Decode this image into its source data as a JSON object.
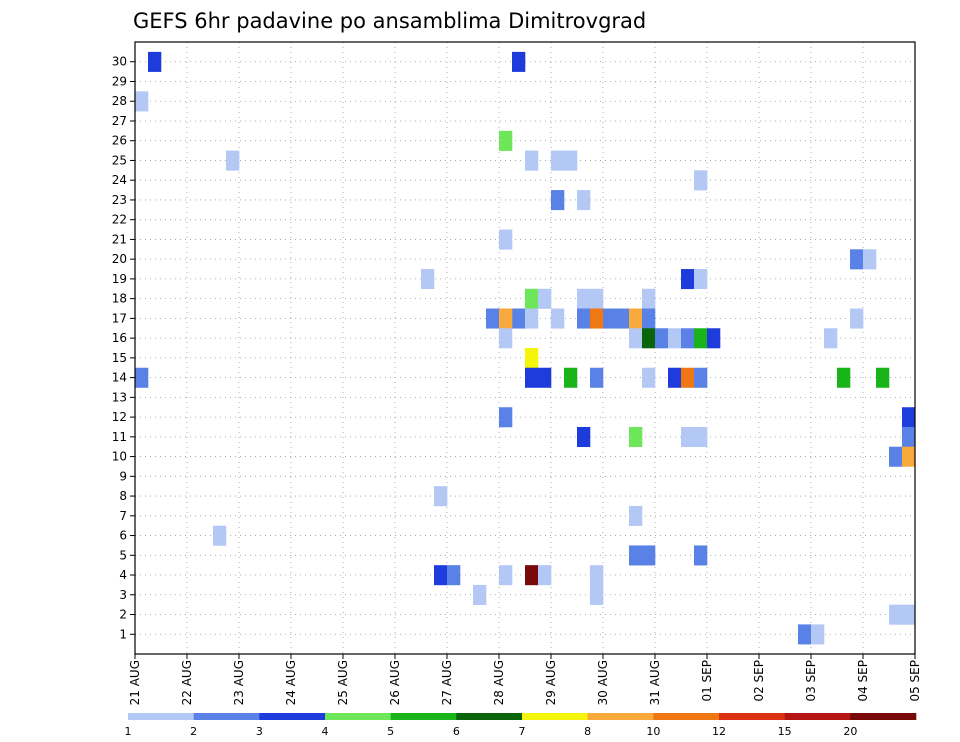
{
  "chart_data": {
    "type": "heatmap",
    "title": "GEFS 6hr padavine po ansamblima Dimitrovgrad",
    "xlabel": "",
    "ylabel": "",
    "x_tick_labels": [
      "21 AUG",
      "22 AUG",
      "23 AUG",
      "24 AUG",
      "25 AUG",
      "26 AUG",
      "27 AUG",
      "28 AUG",
      "29 AUG",
      "30 AUG",
      "31 AUG",
      "01 SEP",
      "02 SEP",
      "03 SEP",
      "04 SEP",
      "05 SEP"
    ],
    "y_tick_labels": [
      "1",
      "2",
      "3",
      "4",
      "5",
      "6",
      "7",
      "8",
      "9",
      "10",
      "11",
      "12",
      "13",
      "14",
      "15",
      "16",
      "17",
      "18",
      "19",
      "20",
      "21",
      "22",
      "23",
      "24",
      "25",
      "26",
      "27",
      "28",
      "29",
      "30"
    ],
    "xlim_days": [
      0,
      15
    ],
    "ylim": [
      0,
      31
    ],
    "grid": true,
    "legend": {
      "placement": "bottom",
      "bins": [
        {
          "label": "1",
          "color": "#b4c8f5"
        },
        {
          "label": "2",
          "color": "#5a82e6"
        },
        {
          "label": "3",
          "color": "#1e3cdc"
        },
        {
          "label": "4",
          "color": "#6ee65a"
        },
        {
          "label": "5",
          "color": "#19b419"
        },
        {
          "label": "6",
          "color": "#0a640a"
        },
        {
          "label": "7",
          "color": "#f5f50a"
        },
        {
          "label": "8",
          "color": "#faaa3c"
        },
        {
          "label": "10",
          "color": "#f07814"
        },
        {
          "label": "12",
          "color": "#dc3214"
        },
        {
          "label": "15",
          "color": "#b41414"
        },
        {
          "label": "20",
          "color": "#780a0a"
        }
      ]
    },
    "cells": [
      {
        "t": 0.25,
        "m": 30,
        "c": 3
      },
      {
        "t": 7.25,
        "m": 30,
        "c": 3
      },
      {
        "t": 0.0,
        "m": 28,
        "c": 1
      },
      {
        "t": 7.0,
        "m": 26,
        "c": 4
      },
      {
        "t": 1.75,
        "m": 25,
        "c": 1
      },
      {
        "t": 7.5,
        "m": 25,
        "c": 1
      },
      {
        "t": 8.0,
        "m": 25,
        "c": 1
      },
      {
        "t": 8.25,
        "m": 25,
        "c": 1
      },
      {
        "t": 10.75,
        "m": 24,
        "c": 1
      },
      {
        "t": 8.0,
        "m": 23,
        "c": 2
      },
      {
        "t": 8.5,
        "m": 23,
        "c": 1
      },
      {
        "t": 7.0,
        "m": 21,
        "c": 1
      },
      {
        "t": 13.75,
        "m": 20,
        "c": 2
      },
      {
        "t": 14.0,
        "m": 20,
        "c": 1
      },
      {
        "t": 5.5,
        "m": 19,
        "c": 1
      },
      {
        "t": 10.5,
        "m": 19,
        "c": 3
      },
      {
        "t": 10.75,
        "m": 19,
        "c": 1
      },
      {
        "t": 7.5,
        "m": 18,
        "c": 4
      },
      {
        "t": 7.75,
        "m": 18,
        "c": 1
      },
      {
        "t": 8.5,
        "m": 18,
        "c": 1
      },
      {
        "t": 8.75,
        "m": 18,
        "c": 1
      },
      {
        "t": 9.75,
        "m": 18,
        "c": 1
      },
      {
        "t": 6.75,
        "m": 17,
        "c": 2
      },
      {
        "t": 7.0,
        "m": 17,
        "c": 2
      },
      {
        "t": 7.25,
        "m": 17,
        "c": 2
      },
      {
        "t": 7.5,
        "m": 17,
        "c": 1
      },
      {
        "t": 8.0,
        "m": 17,
        "c": 1
      },
      {
        "t": 8.5,
        "m": 17,
        "c": 2
      },
      {
        "t": 8.75,
        "m": 17,
        "c": 10
      },
      {
        "t": 9.0,
        "m": 17,
        "c": 2
      },
      {
        "t": 9.25,
        "m": 17,
        "c": 2
      },
      {
        "t": 9.5,
        "m": 17,
        "c": 8
      },
      {
        "t": 9.75,
        "m": 17,
        "c": 2
      },
      {
        "t": 13.75,
        "m": 17,
        "c": 1
      },
      {
        "t": 7.0,
        "m": 17,
        "c": 8
      },
      {
        "t": 7.0,
        "m": 16,
        "c": 1
      },
      {
        "t": 9.5,
        "m": 16,
        "c": 1
      },
      {
        "t": 9.75,
        "m": 16,
        "c": 6
      },
      {
        "t": 10.0,
        "m": 16,
        "c": 2
      },
      {
        "t": 10.25,
        "m": 16,
        "c": 1
      },
      {
        "t": 10.5,
        "m": 16,
        "c": 2
      },
      {
        "t": 10.75,
        "m": 16,
        "c": 5
      },
      {
        "t": 11.0,
        "m": 16,
        "c": 3
      },
      {
        "t": 13.25,
        "m": 16,
        "c": 1
      },
      {
        "t": 7.5,
        "m": 15,
        "c": 7
      },
      {
        "t": 0.0,
        "m": 14,
        "c": 2
      },
      {
        "t": 7.5,
        "m": 14,
        "c": 3
      },
      {
        "t": 7.75,
        "m": 14,
        "c": 3
      },
      {
        "t": 8.25,
        "m": 14,
        "c": 5
      },
      {
        "t": 8.75,
        "m": 14,
        "c": 2
      },
      {
        "t": 9.75,
        "m": 14,
        "c": 1
      },
      {
        "t": 10.25,
        "m": 14,
        "c": 3
      },
      {
        "t": 10.5,
        "m": 14,
        "c": 10
      },
      {
        "t": 10.75,
        "m": 14,
        "c": 2
      },
      {
        "t": 13.5,
        "m": 14,
        "c": 5
      },
      {
        "t": 14.25,
        "m": 14,
        "c": 5
      },
      {
        "t": 7.0,
        "m": 12,
        "c": 2
      },
      {
        "t": 14.75,
        "m": 12,
        "c": 3
      },
      {
        "t": 8.5,
        "m": 11,
        "c": 3
      },
      {
        "t": 9.5,
        "m": 11,
        "c": 4
      },
      {
        "t": 10.5,
        "m": 11,
        "c": 1
      },
      {
        "t": 10.75,
        "m": 11,
        "c": 1
      },
      {
        "t": 14.75,
        "m": 11,
        "c": 2
      },
      {
        "t": 14.5,
        "m": 10,
        "c": 2
      },
      {
        "t": 14.75,
        "m": 10,
        "c": 8
      },
      {
        "t": 5.75,
        "m": 8,
        "c": 1
      },
      {
        "t": 9.5,
        "m": 7,
        "c": 1
      },
      {
        "t": 1.5,
        "m": 6,
        "c": 1
      },
      {
        "t": 9.5,
        "m": 5,
        "c": 2
      },
      {
        "t": 9.75,
        "m": 5,
        "c": 2
      },
      {
        "t": 10.75,
        "m": 5,
        "c": 2
      },
      {
        "t": 5.75,
        "m": 4,
        "c": 3
      },
      {
        "t": 6.0,
        "m": 4,
        "c": 2
      },
      {
        "t": 7.0,
        "m": 4,
        "c": 1
      },
      {
        "t": 7.5,
        "m": 4,
        "c": 20
      },
      {
        "t": 7.75,
        "m": 4,
        "c": 1
      },
      {
        "t": 8.75,
        "m": 4,
        "c": 1
      },
      {
        "t": 6.5,
        "m": 3,
        "c": 1
      },
      {
        "t": 8.75,
        "m": 3,
        "c": 1
      },
      {
        "t": 14.5,
        "m": 2,
        "c": 1
      },
      {
        "t": 14.75,
        "m": 2,
        "c": 1
      },
      {
        "t": 12.75,
        "m": 1,
        "c": 2
      },
      {
        "t": 13.0,
        "m": 1,
        "c": 1
      }
    ]
  }
}
